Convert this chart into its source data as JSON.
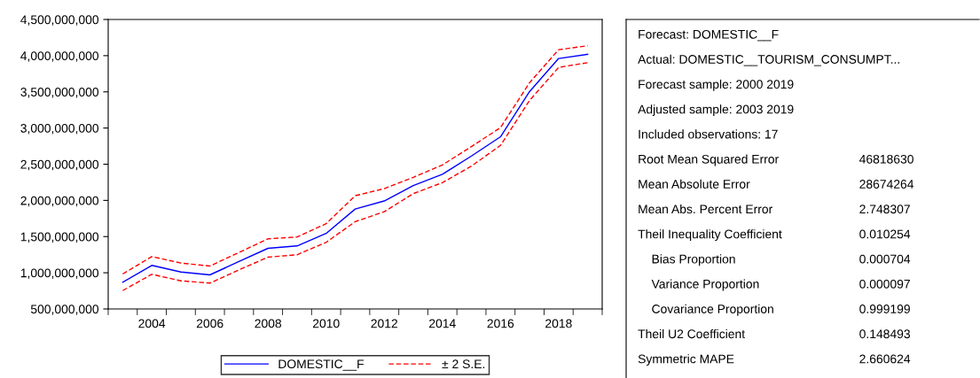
{
  "chart_data": [
    {
      "type": "line",
      "categories": [
        null,
        "2004",
        null,
        "2006",
        null,
        "2008",
        null,
        "2010",
        null,
        "2012",
        null,
        "2014",
        null,
        "2016",
        null,
        "2018",
        null
      ],
      "series": [
        {
          "name": "DOMESTIC__F",
          "color": "#0000ff",
          "line_style": "solid",
          "values": [
            869000000,
            1102000000,
            1011000000,
            971000000,
            1155000000,
            1338000000,
            1371000000,
            1543000000,
            1881000000,
            1992000000,
            2204000000,
            2360000000,
            2613000000,
            2879000000,
            3504000000,
            3961000000,
            4018000000
          ]
        },
        {
          "name": "± 2 S.E.",
          "color": "#ff0000",
          "line_style": "dashed",
          "values": [
            983000000,
            1224000000,
            1134000000,
            1093000000,
            1280000000,
            1469000000,
            1494000000,
            1678000000,
            2065000000,
            2163000000,
            2319000000,
            2490000000,
            2744000000,
            3005000000,
            3626000000,
            4083000000,
            4136000000
          ]
        },
        {
          "color": "#ff0000",
          "line_style": "dashed",
          "values": [
            754000000,
            979000000,
            889000000,
            857000000,
            1040000000,
            1216000000,
            1249000000,
            1420000000,
            1706000000,
            1844000000,
            2094000000,
            2245000000,
            2474000000,
            2760000000,
            3381000000,
            3838000000,
            3903000000
          ]
        }
      ],
      "ylim": [
        500000000,
        4500000000
      ],
      "yticks": [
        {
          "value": 500000000,
          "label": "500,000,000"
        },
        {
          "value": 1000000000,
          "label": "1,000,000,000"
        },
        {
          "value": 1500000000,
          "label": "1,500,000,000"
        },
        {
          "value": 2000000000,
          "label": "2,000,000,000"
        },
        {
          "value": 2500000000,
          "label": "2,500,000,000"
        },
        {
          "value": 3000000000,
          "label": "3,000,000,000"
        },
        {
          "value": 3500000000,
          "label": "3,500,000,000"
        },
        {
          "value": 4000000000,
          "label": "4,000,000,000"
        },
        {
          "value": 4500000000,
          "label": "4,500,000,000"
        }
      ],
      "grid": false,
      "legend": "bottom",
      "marker": "none"
    },
    {
      "type": "other",
      "categories": [
        "Forecast: DOMESTIC__F",
        "Actual: DOMESTIC__TOURISM_CONSUMPT...",
        "Forecast sample: 2000 2019",
        "Adjusted sample: 2003 2019",
        "Included observations: 17",
        "Root Mean Squared Error",
        "Mean Absolute Error",
        "Mean Abs. Percent Error",
        "Theil Inequality Coefficient",
        "    Bias Proportion",
        "    Variance Proportion",
        "    Covariance Proportion",
        "Theil U2 Coefficient",
        "Symmetric MAPE"
      ],
      "value_labels": [
        null,
        null,
        null,
        null,
        null,
        "46818630",
        "28674264",
        "2.748307",
        "0.010254",
        "0.000704",
        "0.000097",
        "0.999199",
        "0.148493",
        "2.660624"
      ]
    }
  ]
}
